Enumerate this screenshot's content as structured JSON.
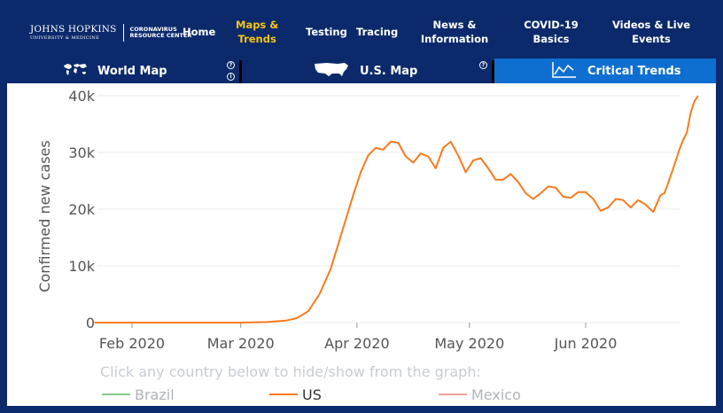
{
  "header": {
    "logo": {
      "line1": "JOHNS HOPKINS",
      "line2": "UNIVERSITY & MEDICINE",
      "center_line1": "CORONAVIRUS",
      "center_line2": "RESOURCE CENTER"
    },
    "nav": [
      {
        "label": "Home"
      },
      {
        "label_line1": "Maps &",
        "label_line2": "Trends",
        "active": true
      },
      {
        "label": "Testing"
      },
      {
        "label": "Tracing"
      },
      {
        "label_line1": "News &",
        "label_line2": "Information"
      },
      {
        "label_line1": "COVID-19",
        "label_line2": "Basics"
      },
      {
        "label_line1": "Videos & Live",
        "label_line2": "Events"
      }
    ]
  },
  "tabs": [
    {
      "label": "World Map",
      "icon": "world-map-icon"
    },
    {
      "label": "U.S. Map",
      "icon": "us-map-icon"
    },
    {
      "label": "Critical Trends",
      "icon": "trend-chart-icon",
      "active": true
    }
  ],
  "colors": {
    "navy": "#0c2a6b",
    "active_tab": "#0f6fd0",
    "active_nav": "#f5c518",
    "us_line": "#f97a1f",
    "brazil_line": "#88c98a",
    "mexico_line": "#f2a39a"
  },
  "chart_data": {
    "type": "line",
    "ylabel": "Confirmed new cases",
    "ylim": [
      0,
      40000
    ],
    "y_ticks": [
      "0",
      "10k",
      "20k",
      "30k",
      "40k"
    ],
    "x_ticks": [
      "Feb 2020",
      "Mar 2020",
      "Apr 2020",
      "May 2020",
      "Jun 2020"
    ],
    "x_range": [
      "2020-01-22",
      "2020-06-26"
    ],
    "instruction": "Click any country below to hide/show from the graph:",
    "legend": [
      "Brazil",
      "US",
      "Mexico"
    ],
    "series": [
      {
        "name": "US",
        "values": [
          [
            "2020-01-22",
            0
          ],
          [
            "2020-02-01",
            0
          ],
          [
            "2020-02-15",
            0
          ],
          [
            "2020-03-01",
            0
          ],
          [
            "2020-03-08",
            100
          ],
          [
            "2020-03-13",
            350
          ],
          [
            "2020-03-16",
            800
          ],
          [
            "2020-03-19",
            2000
          ],
          [
            "2020-03-22",
            5000
          ],
          [
            "2020-03-25",
            9500
          ],
          [
            "2020-03-28",
            16000
          ],
          [
            "2020-03-31",
            22500
          ],
          [
            "2020-04-02",
            26500
          ],
          [
            "2020-04-04",
            29500
          ],
          [
            "2020-04-06",
            30800
          ],
          [
            "2020-04-08",
            30500
          ],
          [
            "2020-04-10",
            31900
          ],
          [
            "2020-04-12",
            31700
          ],
          [
            "2020-04-14",
            29300
          ],
          [
            "2020-04-16",
            28200
          ],
          [
            "2020-04-18",
            29800
          ],
          [
            "2020-04-20",
            29300
          ],
          [
            "2020-04-22",
            27200
          ],
          [
            "2020-04-24",
            30800
          ],
          [
            "2020-04-26",
            31900
          ],
          [
            "2020-04-28",
            29500
          ],
          [
            "2020-04-30",
            26500
          ],
          [
            "2020-05-02",
            28600
          ],
          [
            "2020-05-04",
            29000
          ],
          [
            "2020-05-06",
            27200
          ],
          [
            "2020-05-08",
            25200
          ],
          [
            "2020-05-10",
            25200
          ],
          [
            "2020-05-12",
            26200
          ],
          [
            "2020-05-14",
            24800
          ],
          [
            "2020-05-16",
            22800
          ],
          [
            "2020-05-18",
            21800
          ],
          [
            "2020-05-20",
            22800
          ],
          [
            "2020-05-22",
            24000
          ],
          [
            "2020-05-24",
            23800
          ],
          [
            "2020-05-26",
            22200
          ],
          [
            "2020-05-28",
            22000
          ],
          [
            "2020-05-30",
            23000
          ],
          [
            "2020-06-01",
            23000
          ],
          [
            "2020-06-03",
            21800
          ],
          [
            "2020-06-05",
            19700
          ],
          [
            "2020-06-07",
            20300
          ],
          [
            "2020-06-09",
            21800
          ],
          [
            "2020-06-11",
            21600
          ],
          [
            "2020-06-13",
            20300
          ],
          [
            "2020-06-15",
            21600
          ],
          [
            "2020-06-17",
            20800
          ],
          [
            "2020-06-19",
            19500
          ],
          [
            "2020-06-21",
            22500
          ],
          [
            "2020-06-22",
            22800
          ],
          [
            "2020-06-24",
            26500
          ],
          [
            "2020-06-25",
            28500
          ],
          [
            "2020-06-26",
            30500
          ],
          [
            "2020-06-27",
            32200
          ],
          [
            "2020-06-28",
            33500
          ],
          [
            "2020-06-29",
            37000
          ],
          [
            "2020-06-30",
            39000
          ],
          [
            "2020-07-01",
            40000
          ]
        ]
      }
    ]
  }
}
